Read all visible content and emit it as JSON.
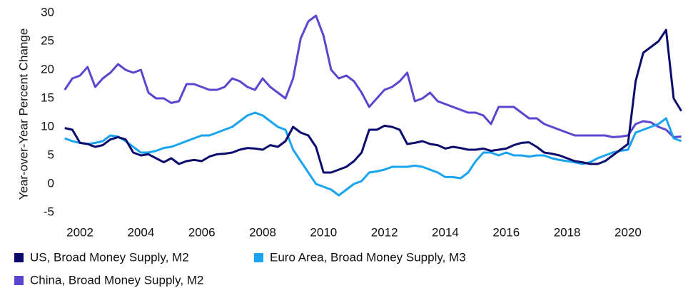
{
  "chart_data": {
    "type": "line",
    "y_label": "Year-over-Year Percent Change",
    "x": [
      2001.5,
      2001.75,
      2002,
      2002.25,
      2002.5,
      2002.75,
      2003,
      2003.25,
      2003.5,
      2003.75,
      2004,
      2004.25,
      2004.5,
      2004.75,
      2005,
      2005.25,
      2005.5,
      2005.75,
      2006,
      2006.25,
      2006.5,
      2006.75,
      2007,
      2007.25,
      2007.5,
      2007.75,
      2008,
      2008.25,
      2008.5,
      2008.75,
      2009,
      2009.25,
      2009.5,
      2009.75,
      2010,
      2010.25,
      2010.5,
      2010.75,
      2011,
      2011.25,
      2011.5,
      2011.75,
      2012,
      2012.25,
      2012.5,
      2012.75,
      2013,
      2013.25,
      2013.5,
      2013.75,
      2014,
      2014.25,
      2014.5,
      2014.75,
      2015,
      2015.25,
      2015.5,
      2015.75,
      2016,
      2016.25,
      2016.5,
      2016.75,
      2017,
      2017.25,
      2017.5,
      2017.75,
      2018,
      2018.25,
      2018.5,
      2018.75,
      2019,
      2019.25,
      2019.5,
      2019.75,
      2020,
      2020.25,
      2020.5,
      2020.75,
      2021,
      2021.25,
      2021.5,
      2021.75
    ],
    "series": [
      {
        "name": "US, Broad Money Supply, M2",
        "color": "#0b0b6e",
        "values": [
          9.8,
          9.5,
          7.2,
          7,
          6.5,
          6.8,
          7.8,
          8.2,
          7.8,
          5.5,
          5,
          5.2,
          4.5,
          3.8,
          4.5,
          3.5,
          4,
          4.2,
          4,
          4.8,
          5.2,
          5.3,
          5.5,
          6,
          6.3,
          6.2,
          6,
          6.8,
          6.5,
          7.5,
          10,
          9,
          8.5,
          6.5,
          2,
          2,
          2.5,
          3,
          4,
          5.5,
          9.5,
          9.5,
          10.2,
          10,
          9.5,
          7,
          7.2,
          7.5,
          7,
          6.8,
          6.2,
          6.5,
          6.3,
          6,
          6,
          6.2,
          5.8,
          6,
          6.2,
          6.8,
          7.2,
          7.3,
          6.5,
          5.5,
          5.3,
          5,
          4.5,
          4,
          3.8,
          3.5,
          3.5,
          4,
          5,
          6,
          7,
          18,
          23,
          24,
          25,
          27,
          15,
          12.8
        ]
      },
      {
        "name": "Euro Area, Broad Money Supply, M3",
        "color": "#1aa3ef",
        "values": [
          8,
          7.5,
          7.2,
          7,
          7.2,
          7.5,
          8.5,
          8.3,
          7.5,
          6.5,
          5.5,
          5.5,
          5.8,
          6.3,
          6.5,
          7,
          7.5,
          8,
          8.5,
          8.5,
          9,
          9.5,
          10,
          11,
          12,
          12.5,
          12,
          11,
          10,
          9.5,
          6,
          4,
          2,
          0,
          -0.5,
          -1,
          -2,
          -1,
          0,
          0.5,
          2,
          2.2,
          2.5,
          3,
          3,
          3,
          3.2,
          3,
          2.5,
          2,
          1.2,
          1.2,
          1,
          2,
          4,
          5.5,
          5.5,
          5,
          5.5,
          5,
          5,
          4.8,
          5,
          5,
          4.5,
          4.2,
          4,
          3.8,
          3.5,
          3.8,
          4.5,
          5,
          5.5,
          5.8,
          6,
          9,
          9.5,
          10,
          10.5,
          11.5,
          8,
          7.5
        ]
      },
      {
        "name": "China, Broad Money Supply, M2",
        "color": "#5b46cf",
        "values": [
          16.5,
          18.5,
          19,
          20.5,
          17,
          18.5,
          19.5,
          21,
          20,
          19.5,
          20,
          16,
          15,
          15,
          14.2,
          14.5,
          17.5,
          17.5,
          17,
          16.5,
          16.5,
          17,
          18.5,
          18,
          17,
          16.5,
          18.5,
          17,
          16,
          15,
          18.5,
          25.5,
          28.5,
          29.5,
          26,
          20,
          18.5,
          19,
          18,
          16,
          13.5,
          15,
          16.5,
          17,
          18,
          19.5,
          14.5,
          15,
          16,
          14.5,
          14,
          13.5,
          13,
          12.5,
          12.5,
          12,
          10.5,
          13.5,
          13.5,
          13.5,
          12.5,
          11.5,
          11.5,
          10.5,
          10,
          9.5,
          9,
          8.5,
          8.5,
          8.5,
          8.5,
          8.5,
          8.2,
          8.3,
          8.5,
          10.5,
          11,
          10.8,
          10,
          9.5,
          8.2,
          8.3
        ]
      }
    ],
    "xlim": [
      2001.53,
      2021.83
    ],
    "xticks": [
      2002,
      2004,
      2006,
      2008,
      2010,
      2012,
      2014,
      2016,
      2018,
      2020
    ],
    "ylim": [
      -5,
      30
    ],
    "yticks": [
      -5,
      0,
      5,
      10,
      15,
      20,
      25,
      30
    ],
    "grid": false,
    "legend": "bottom"
  }
}
